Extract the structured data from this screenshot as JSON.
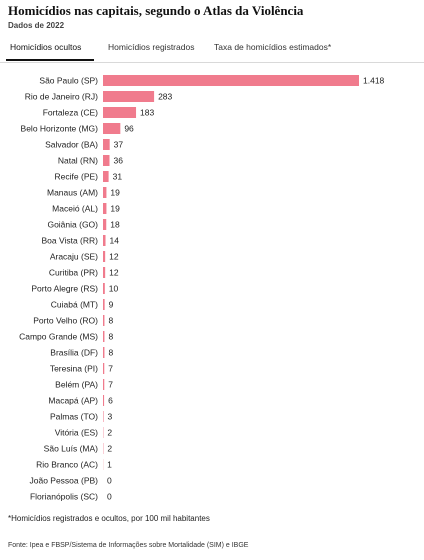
{
  "header": {
    "title": "Homicídios nas capitais, segundo o Atlas da Violência",
    "subtitle": "Dados de 2022"
  },
  "tabs": [
    {
      "label": "Homicídios ocultos",
      "active": true
    },
    {
      "label": "Homicídios registrados",
      "active": false
    },
    {
      "label": "Taxa de homicídios estimados*",
      "active": false
    }
  ],
  "chart_data": {
    "type": "bar",
    "orientation": "horizontal",
    "categories": [
      "São Paulo (SP)",
      "Rio de Janeiro (RJ)",
      "Fortaleza (CE)",
      "Belo Horizonte (MG)",
      "Salvador (BA)",
      "Natal (RN)",
      "Recife (PE)",
      "Manaus (AM)",
      "Maceió (AL)",
      "Goiânia (GO)",
      "Boa Vista (RR)",
      "Aracaju (SE)",
      "Curitiba (PR)",
      "Porto Alegre (RS)",
      "Cuiabá (MT)",
      "Porto Velho (RO)",
      "Campo Grande (MS)",
      "Brasília (DF)",
      "Teresina (PI)",
      "Belém (PA)",
      "Macapá (AP)",
      "Palmas (TO)",
      "Vitória (ES)",
      "São Luís (MA)",
      "Rio Branco (AC)",
      "João Pessoa (PB)",
      "Florianópolis (SC)"
    ],
    "values": [
      1418,
      283,
      183,
      96,
      37,
      36,
      31,
      19,
      19,
      18,
      14,
      12,
      12,
      10,
      9,
      8,
      8,
      8,
      7,
      7,
      6,
      3,
      2,
      2,
      1,
      0,
      0
    ],
    "value_labels": [
      "1.418",
      "283",
      "183",
      "96",
      "37",
      "36",
      "31",
      "19",
      "19",
      "18",
      "14",
      "12",
      "12",
      "10",
      "9",
      "8",
      "8",
      "8",
      "7",
      "7",
      "6",
      "3",
      "2",
      "2",
      "1",
      "0",
      "0"
    ],
    "xlim": [
      0,
      1418
    ],
    "grid": false,
    "bar_color": "#f07b8d"
  },
  "footnote": "*Homicídios registrados e ocultos, por 100 mil habitantes",
  "source": "Fonte: Ipea e FBSP/Sistema de Informações sobre Mortalidade (SIM) e IBGE"
}
